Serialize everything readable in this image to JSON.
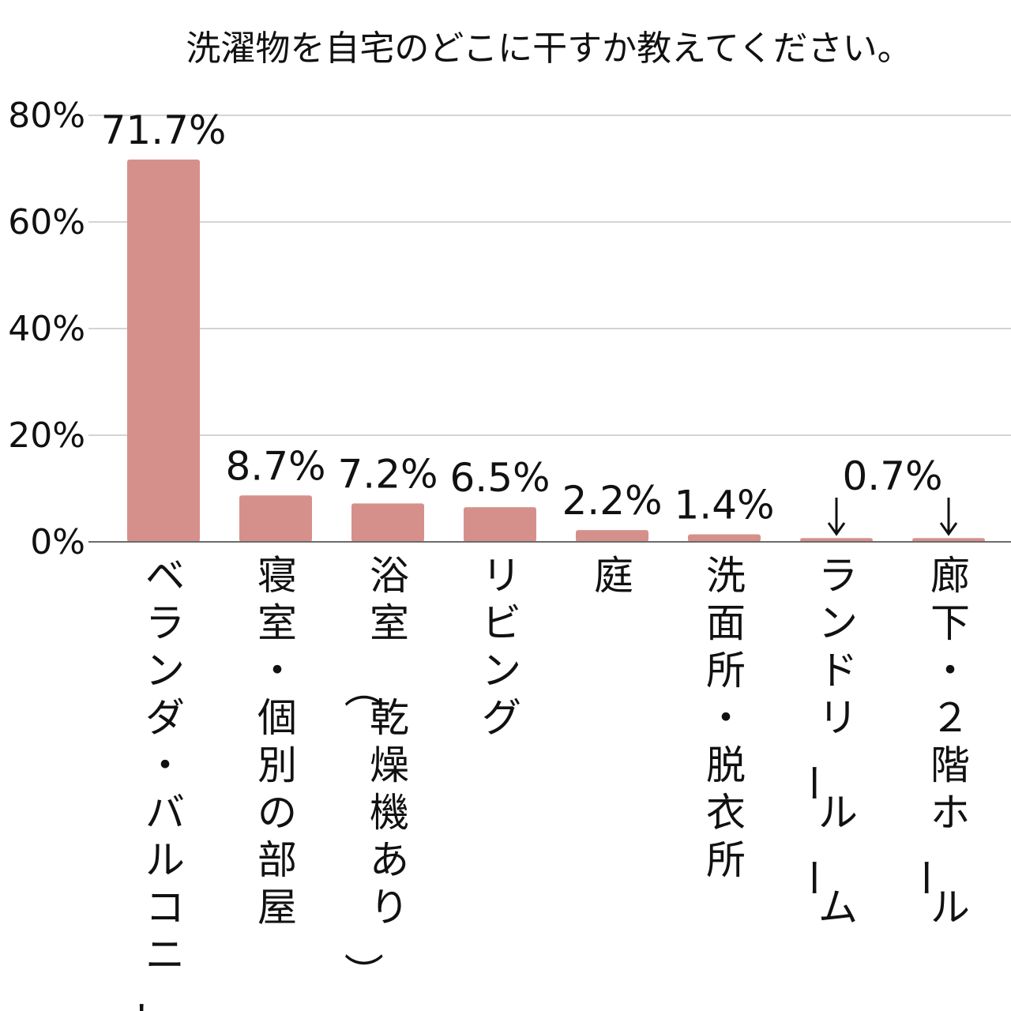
{
  "chart_data": {
    "type": "bar",
    "title": "洗濯物を自宅のどこに干すか教えてください。",
    "categories": [
      "ベランダ・バルコニー",
      "寝室・個別の部屋",
      "浴室（乾燥機あり）",
      "リビング",
      "庭",
      "洗面所・脱衣所",
      "ランドリールーム",
      "廊下・２階ホール"
    ],
    "values": [
      71.7,
      8.7,
      7.2,
      6.5,
      2.2,
      1.4,
      0.7,
      0.7
    ],
    "data_labels": [
      "71.7%",
      "8.7%",
      "7.2%",
      "6.5%",
      "2.2%",
      "1.4%",
      "",
      ""
    ],
    "shared_label": {
      "text": "0.7%",
      "applies_to": [
        6,
        7
      ]
    },
    "ylim": [
      0,
      80
    ],
    "yticks": [
      0,
      20,
      40,
      60,
      80
    ],
    "ytick_labels": [
      "0%",
      "20%",
      "40%",
      "60%",
      "80%"
    ],
    "grid": true,
    "legend": "none",
    "bar_color": "#d6908b",
    "grid_color": "#d4d4d4"
  }
}
